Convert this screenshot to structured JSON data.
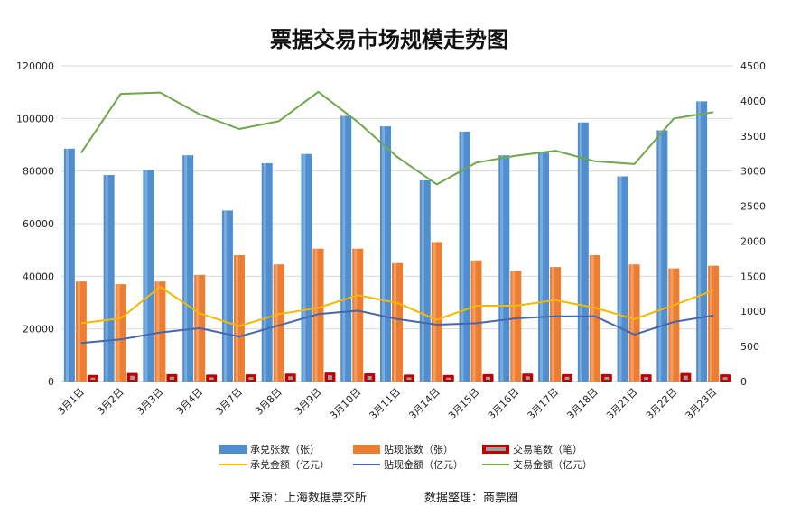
{
  "chart_data": {
    "type": "bar",
    "title": "票据交易市场规模走势图",
    "categories": [
      "3月1日",
      "3月2日",
      "3月3日",
      "3月4日",
      "3月7日",
      "3月8日",
      "3月9日",
      "3月10日",
      "3月11日",
      "3月14日",
      "3月15日",
      "3月16日",
      "3月17日",
      "3月18日",
      "3月21日",
      "3月22日",
      "3月23日"
    ],
    "y_left": {
      "min": 0,
      "max": 120000,
      "ticks": [
        "0",
        "20000",
        "40000",
        "60000",
        "80000",
        "100000",
        "120000"
      ]
    },
    "y_right": {
      "min": 0,
      "max": 4500,
      "ticks": [
        "0",
        "500",
        "1000",
        "1500",
        "2000",
        "2500",
        "3000",
        "3500",
        "4000",
        "4500"
      ]
    },
    "grid": true,
    "legend_position": "bottom",
    "series": [
      {
        "name": "承兑张数（张）",
        "type": "bar",
        "axis": "left",
        "color": "#4f8fd0",
        "values": [
          88500,
          78500,
          80500,
          86000,
          65000,
          83000,
          86500,
          101000,
          97000,
          76500,
          95000,
          86000,
          87000,
          98500,
          78000,
          95500,
          106500
        ]
      },
      {
        "name": "贴现张数（张）",
        "type": "bar",
        "axis": "left",
        "color": "#ed7d31",
        "values": [
          38000,
          37000,
          38000,
          40500,
          48000,
          44500,
          50500,
          50500,
          45000,
          53000,
          46000,
          42000,
          43500,
          48000,
          44500,
          43000,
          44000
        ]
      },
      {
        "name": "交易笔数（笔）",
        "type": "bar",
        "axis": "left",
        "color": "#c00000",
        "values": [
          2500,
          3200,
          2800,
          2600,
          2700,
          3000,
          3400,
          3100,
          2600,
          2500,
          2800,
          3000,
          2800,
          2800,
          2700,
          3200,
          2700
        ]
      },
      {
        "name": "承兑金额（亿元）",
        "type": "line",
        "axis": "right",
        "color": "#f5b800",
        "values": [
          830,
          900,
          1350,
          970,
          790,
          960,
          1050,
          1230,
          1120,
          880,
          1080,
          1080,
          1160,
          1050,
          890,
          1090,
          1300
        ]
      },
      {
        "name": "贴现金额（亿元）",
        "type": "line",
        "axis": "right",
        "color": "#4667ad",
        "values": [
          550,
          600,
          700,
          760,
          640,
          800,
          960,
          1010,
          890,
          810,
          830,
          900,
          930,
          930,
          670,
          850,
          940
        ]
      },
      {
        "name": "交易金额（亿元）",
        "type": "line",
        "axis": "right",
        "color": "#6ea84b",
        "values": [
          3260,
          4100,
          4120,
          3810,
          3600,
          3710,
          4130,
          3700,
          3200,
          2810,
          3120,
          3220,
          3290,
          3140,
          3100,
          3750,
          3840
        ]
      }
    ]
  },
  "footer": {
    "source": "来源：上海数据票交所",
    "organizer": "数据整理：商票圈"
  }
}
